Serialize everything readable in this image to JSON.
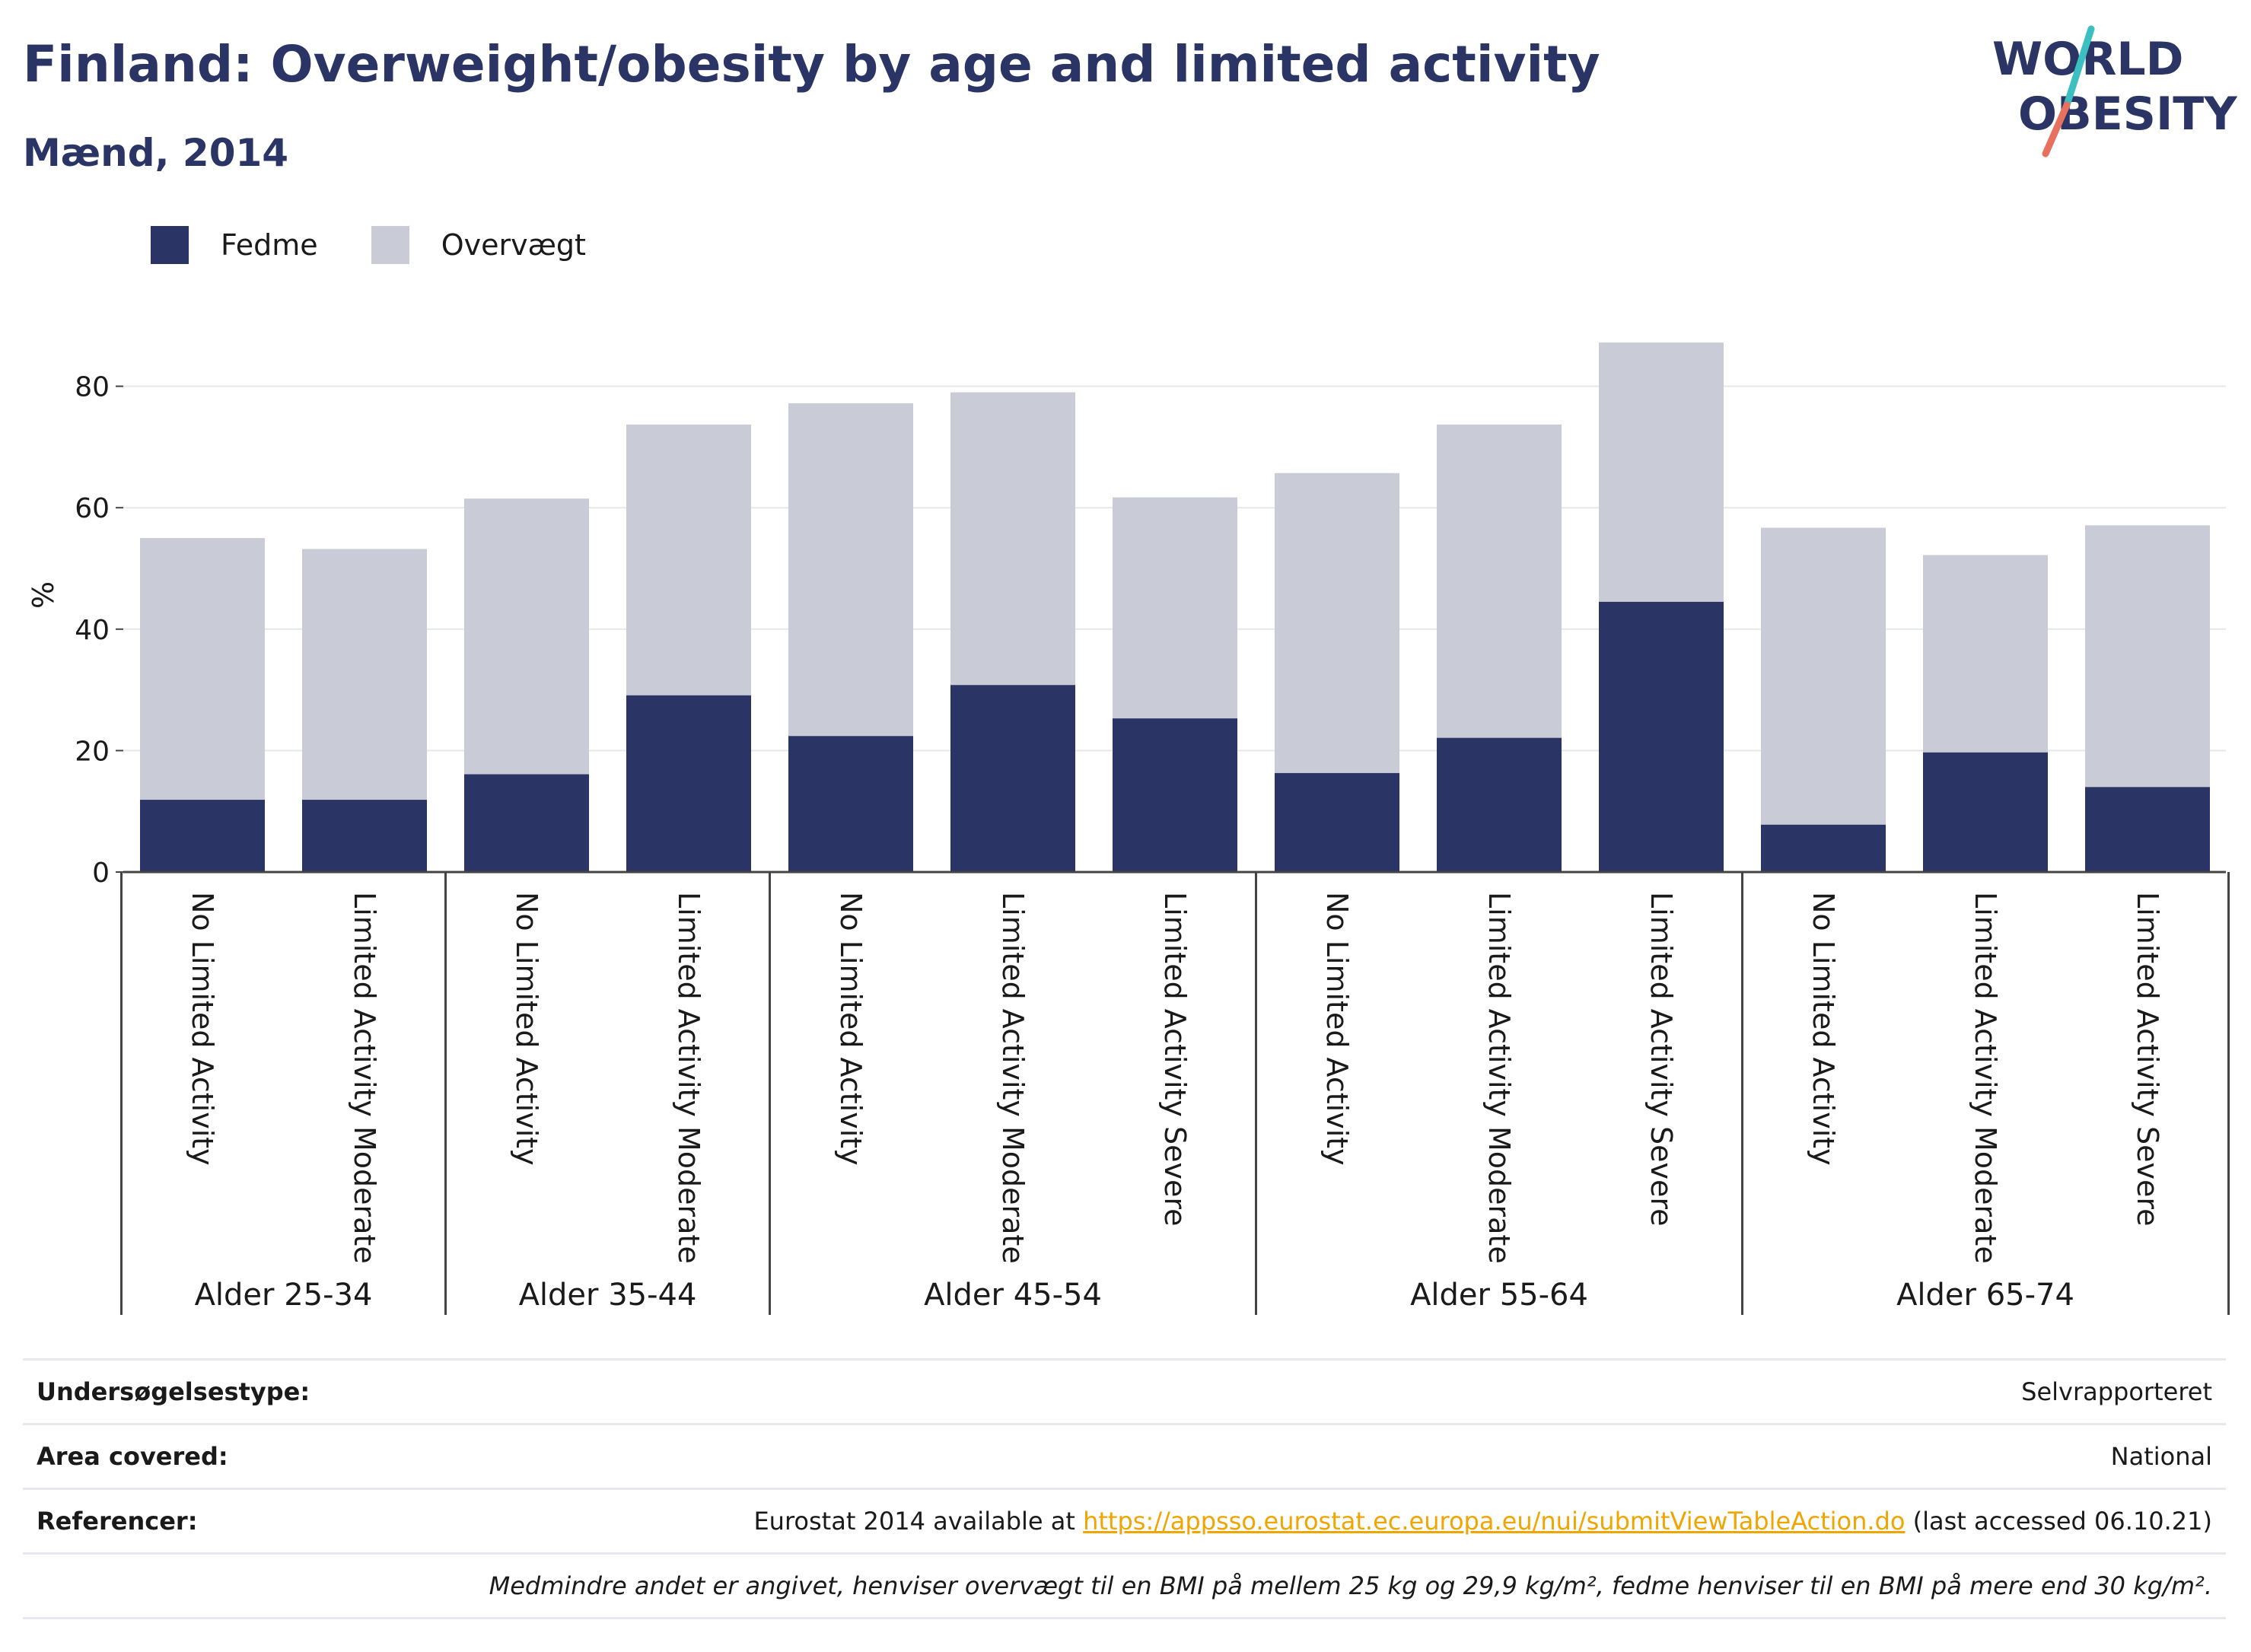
{
  "header": {
    "title": "Finland: Overweight/obesity by age and limited activity",
    "subtitle": "Mænd, 2014"
  },
  "logo": {
    "line1": "WORLD",
    "line2": "OBESITY",
    "colors": {
      "text": "#2b3565",
      "slash_top": "#3bbfc0",
      "slash_bottom": "#e8705f"
    }
  },
  "legend": [
    {
      "label": "Fedme",
      "color": "#2b3565"
    },
    {
      "label": "Overvægt",
      "color": "#c9cbd6"
    }
  ],
  "chart_data": {
    "type": "bar",
    "stacked": true,
    "ylabel": "%",
    "ylim": [
      0,
      90
    ],
    "yticks": [
      0,
      20,
      40,
      60,
      80
    ],
    "grid": true,
    "legend_position": "top-left",
    "groups": [
      {
        "label": "Alder 25-34",
        "categories": [
          "No Limited Activity",
          "Limited Activity Moderate"
        ]
      },
      {
        "label": "Alder 35-44",
        "categories": [
          "No Limited Activity",
          "Limited Activity Moderate"
        ]
      },
      {
        "label": "Alder 45-54",
        "categories": [
          "No Limited Activity",
          "Limited Activity Moderate",
          "Limited Activity Severe"
        ]
      },
      {
        "label": "Alder 55-64",
        "categories": [
          "No Limited Activity",
          "Limited Activity Moderate",
          "Limited Activity Severe"
        ]
      },
      {
        "label": "Alder 65-74",
        "categories": [
          "No Limited Activity",
          "Limited Activity Moderate",
          "Limited Activity Severe"
        ]
      }
    ],
    "series": [
      {
        "name": "Fedme",
        "color": "#2b3565",
        "values": [
          11.9,
          11.9,
          16.1,
          29.1,
          22.4,
          30.8,
          25.3,
          16.3,
          22.1,
          44.5,
          7.8,
          19.7,
          14.0
        ]
      },
      {
        "name": "Overvægt",
        "color": "#c9cbd6",
        "values": [
          43.1,
          41.3,
          45.4,
          44.6,
          54.8,
          48.2,
          36.4,
          49.4,
          51.6,
          42.7,
          48.9,
          32.5,
          43.1
        ]
      }
    ]
  },
  "info": {
    "survey_type_label": "Undersøgelsestype:",
    "survey_type_value": "Selvrapporteret",
    "area_label": "Area covered:",
    "area_value": "National",
    "references_label": "Referencer:",
    "references_prefix": "Eurostat 2014 available at ",
    "references_link": "https://appsso.eurostat.ec.europa.eu/nui/submitViewTableAction.do",
    "references_suffix": " (last accessed 06.10.21)",
    "note": "Medmindre andet er angivet, henviser overvægt til en BMI på mellem 25 kg og 29,9 kg/m², fedme henviser til en BMI på mere end 30 kg/m²."
  }
}
